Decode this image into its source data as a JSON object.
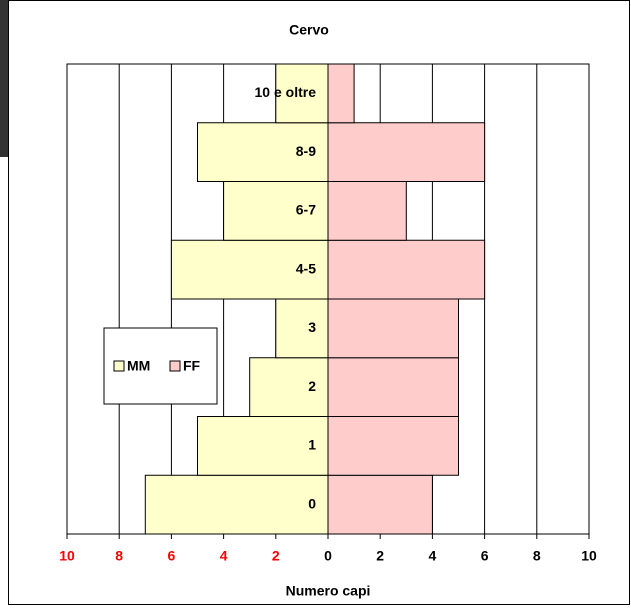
{
  "chart_data": {
    "type": "pyramid",
    "title": "Cervo",
    "x_label": "Numero capi",
    "categories": [
      "0",
      "1",
      "2",
      "3",
      "4-5",
      "6-7",
      "8-9",
      "10 e oltre"
    ],
    "series": [
      {
        "name": "MM",
        "color": "#ffffcc",
        "side": "left",
        "values": [
          7,
          5,
          3,
          2,
          6,
          4,
          5,
          2
        ]
      },
      {
        "name": "FF",
        "color": "#ffcccc",
        "side": "right",
        "values": [
          4,
          5,
          5,
          5,
          6,
          3,
          6,
          1
        ]
      }
    ],
    "xlim": [
      -10,
      10
    ],
    "xticks": [
      {
        "value": -10,
        "label": "10"
      },
      {
        "value": -8,
        "label": "8"
      },
      {
        "value": -6,
        "label": "6"
      },
      {
        "value": -4,
        "label": "4"
      },
      {
        "value": -2,
        "label": "2"
      },
      0,
      2,
      4,
      6,
      8,
      10
    ],
    "left_tick_color": "#ff0000",
    "grid": true,
    "legend": "left"
  }
}
